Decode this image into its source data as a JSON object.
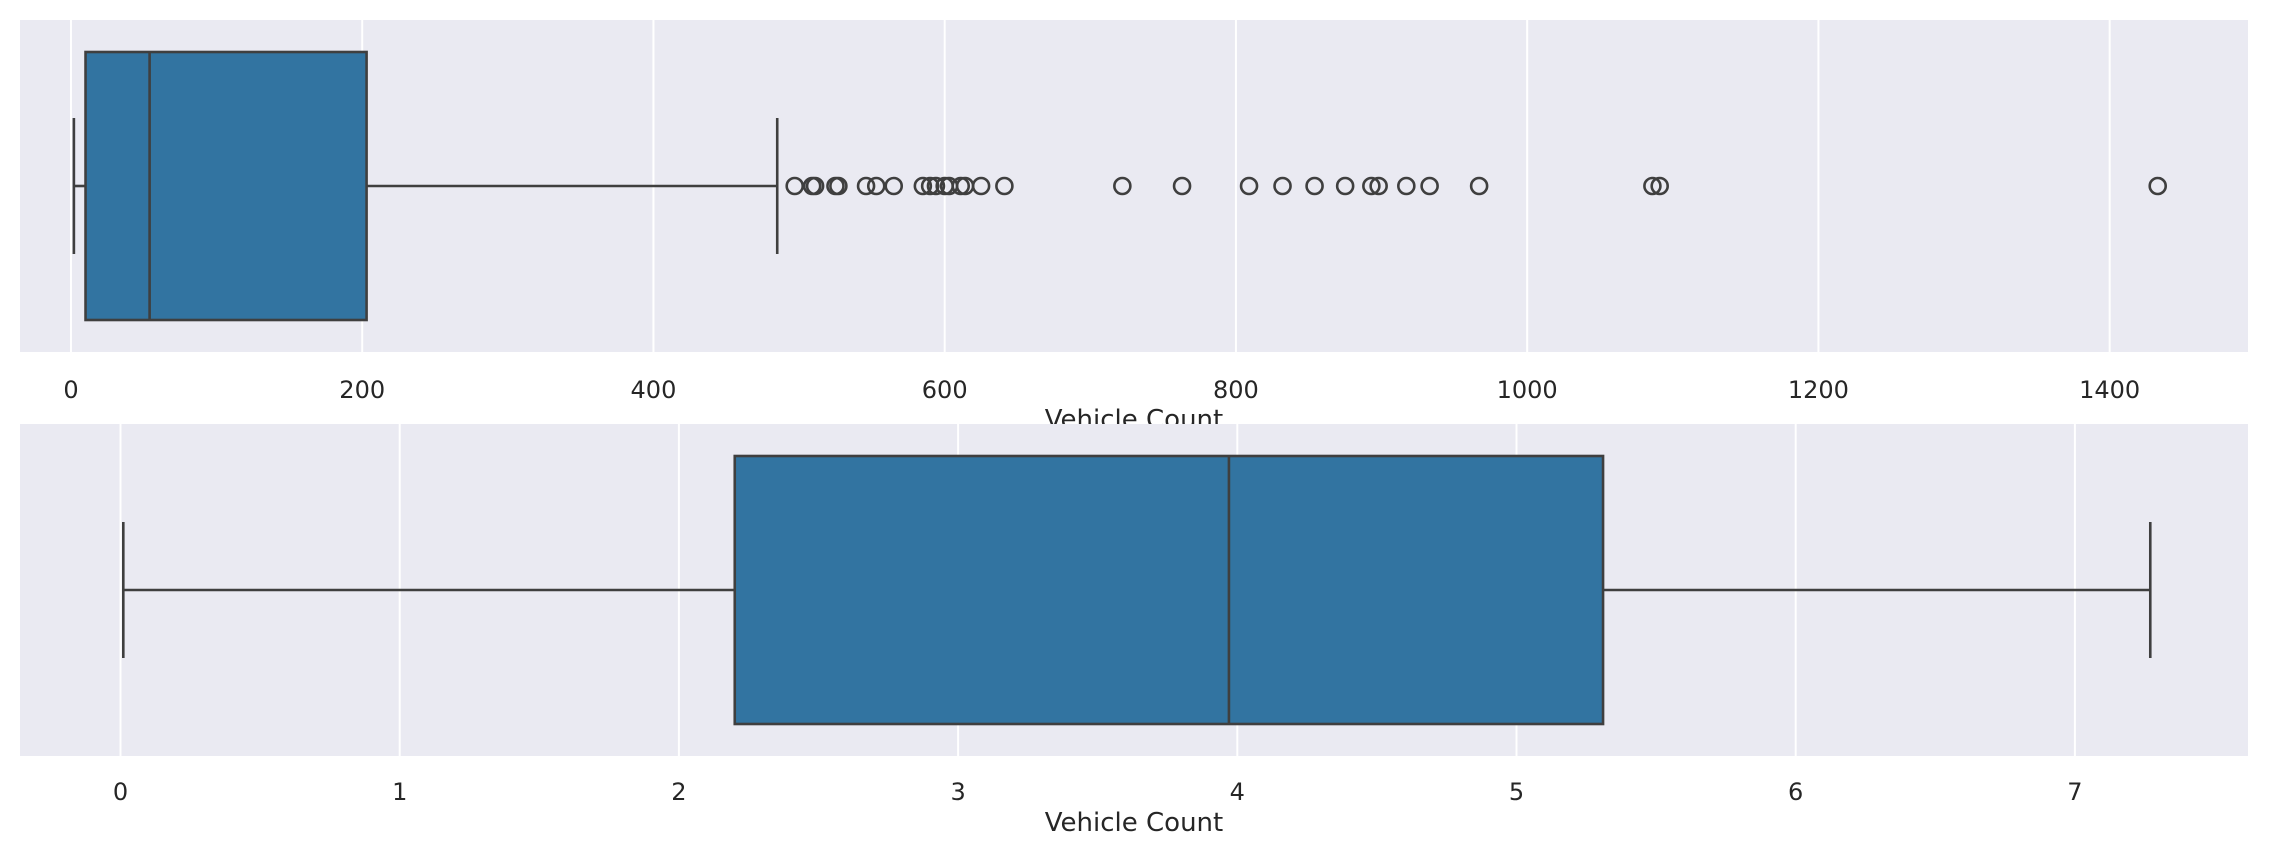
{
  "chart_data": [
    {
      "type": "box",
      "orientation": "horizontal",
      "xlabel": "Vehicle Count",
      "xlim": [
        -35,
        1495
      ],
      "xticks": [
        0,
        200,
        400,
        600,
        800,
        1000,
        1200,
        1400
      ],
      "xtick_labels": [
        "0",
        "200",
        "400",
        "600",
        "800",
        "1000",
        "1200",
        "1400"
      ],
      "grid": true,
      "stats": {
        "whislo": 2,
        "q1": 10,
        "median": 54,
        "q3": 203,
        "whishi": 485
      },
      "fliers": [
        497,
        509,
        511,
        525,
        527,
        546,
        553,
        565,
        585,
        590,
        594,
        600,
        603,
        611,
        614,
        625,
        641,
        722,
        763,
        809,
        832,
        854,
        875,
        893,
        898,
        917,
        933,
        967,
        1086,
        1091,
        1433
      ],
      "color": "#3274a1"
    },
    {
      "type": "box",
      "orientation": "horizontal",
      "xlabel": "Vehicle Count",
      "xlim": [
        -0.36,
        7.62
      ],
      "xticks": [
        0,
        1,
        2,
        3,
        4,
        5,
        6,
        7
      ],
      "xtick_labels": [
        "0",
        "1",
        "2",
        "3",
        "4",
        "5",
        "6",
        "7"
      ],
      "grid": true,
      "stats": {
        "whislo": 0.01,
        "q1": 2.2,
        "median": 3.97,
        "q3": 5.31,
        "whishi": 7.27
      },
      "fliers": [],
      "color": "#3274a1"
    }
  ]
}
